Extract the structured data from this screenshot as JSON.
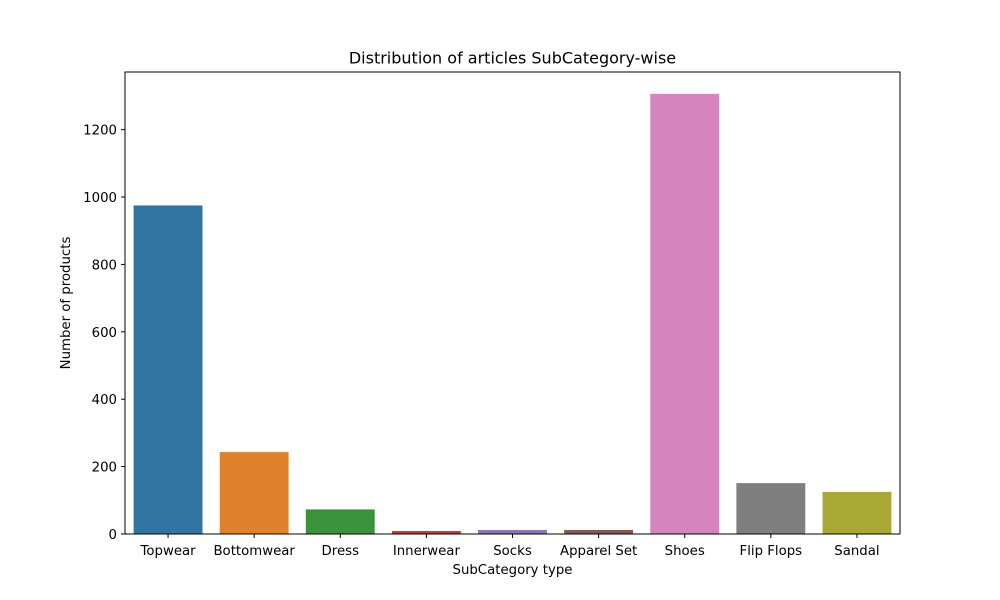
{
  "chart_data": {
    "type": "bar",
    "title": "Distribution of articles SubCategory-wise",
    "xlabel": "SubCategory type",
    "ylabel": "Number of products",
    "categories": [
      "Topwear",
      "Bottomwear",
      "Dress",
      "Innerwear",
      "Socks",
      "Apparel Set",
      "Shoes",
      "Flip Flops",
      "Sandal"
    ],
    "values": [
      975,
      243,
      73,
      9,
      12,
      12,
      1306,
      151,
      125
    ],
    "colors": [
      "#3274a1",
      "#e1812c",
      "#3a923a",
      "#c03d3e",
      "#9372b2",
      "#845b53",
      "#d684bd",
      "#7f7f7f",
      "#a9aa35"
    ],
    "ylim": [
      0,
      1371
    ],
    "yticks": [
      0,
      200,
      400,
      600,
      800,
      1000,
      1200
    ],
    "grid": false,
    "legend": "none"
  }
}
